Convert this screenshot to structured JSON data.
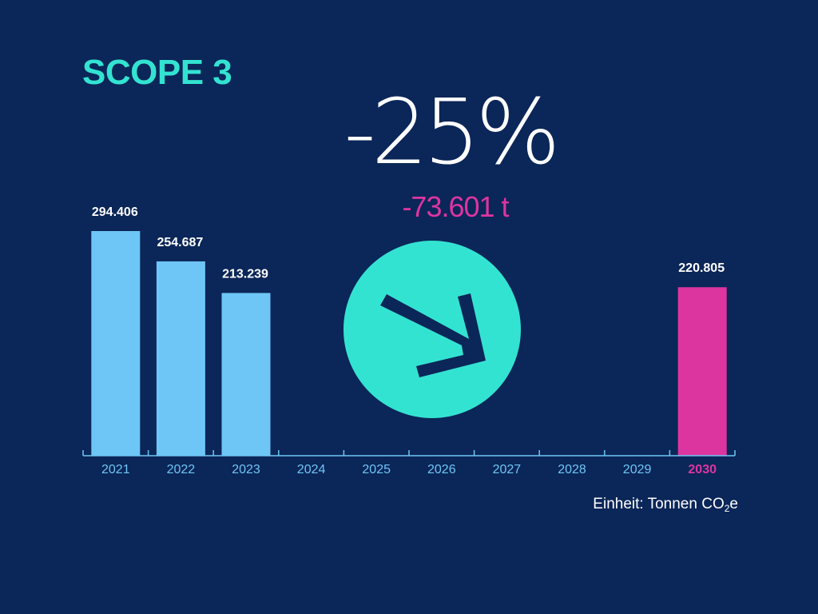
{
  "title": "SCOPE 3",
  "headline": {
    "percent": "-25%",
    "absolute": "-73.601 t"
  },
  "unit": {
    "prefix": "Einheit: Tonnen CO",
    "subscript": "2",
    "suffix": "e"
  },
  "icon": "arrow-down-right-icon",
  "colors": {
    "background": "#0b2658",
    "accent": "#33e3d2",
    "bar": "#6ec6f6",
    "target": "#dd35a0",
    "axis": "#6ec6f6"
  },
  "chart_data": {
    "type": "bar",
    "categories": [
      "2021",
      "2022",
      "2023",
      "2024",
      "2025",
      "2026",
      "2027",
      "2028",
      "2029",
      "2030"
    ],
    "values": [
      294406,
      254687,
      213239,
      null,
      null,
      null,
      null,
      null,
      null,
      220805
    ],
    "value_labels": [
      "294.406",
      "254.687",
      "213.239",
      "",
      "",
      "",
      "",
      "",
      "",
      "220.805"
    ],
    "highlight_category": "2030",
    "title": "SCOPE 3",
    "ylabel": "Einheit: Tonnen CO2e",
    "ylim": [
      0,
      294406
    ],
    "grid": false
  }
}
